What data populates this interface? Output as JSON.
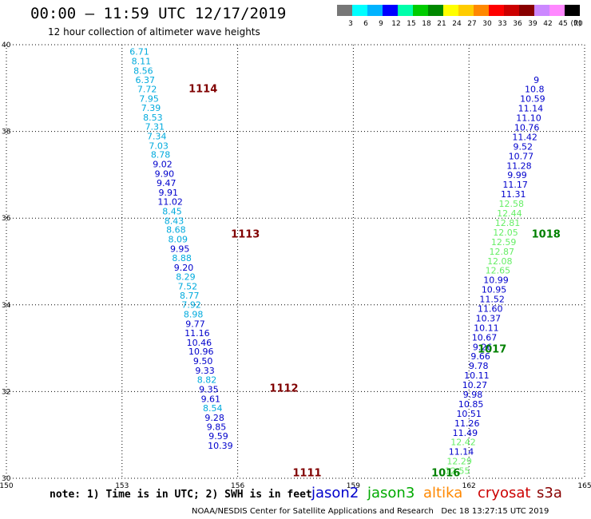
{
  "header": {
    "title": "00:00 – 11:59 UTC 12/17/2019",
    "subtitle": "12 hour collection of altimeter wave heights"
  },
  "colorbar": {
    "colors": [
      "#777777",
      "#00ffff",
      "#00b3ff",
      "#0000ff",
      "#00ffaa",
      "#00cc00",
      "#008800",
      "#ffff00",
      "#ffcc00",
      "#ff8800",
      "#ff0000",
      "#cc0000",
      "#880000",
      "#cc88ff",
      "#ff88ff",
      "#000000"
    ],
    "labels": [
      "3",
      "6",
      "9",
      "12",
      "15",
      "18",
      "21",
      "24",
      "27",
      "30",
      "33",
      "36",
      "39",
      "42",
      "45",
      "70"
    ],
    "unit": "(ft)"
  },
  "chart_data": {
    "type": "scatter",
    "title": "00:00 – 11:59 UTC 12/17/2019",
    "subtitle": "12 hour collection of altimeter wave heights",
    "xlim": [
      150,
      165
    ],
    "ylim": [
      30,
      40
    ],
    "x_ticks": [
      "150",
      "153",
      "156",
      "159",
      "162",
      "165"
    ],
    "y_ticks": [
      "30",
      "32",
      "34",
      "36",
      "38",
      "40"
    ],
    "grid": true,
    "series": [
      {
        "name": "jason2",
        "color_scale": "swh",
        "points": [
          {
            "lon": 153.45,
            "lat": 39.77,
            "swh": "6.71"
          },
          {
            "lon": 153.5,
            "lat": 39.55,
            "swh": "8.11"
          },
          {
            "lon": 153.55,
            "lat": 39.33,
            "swh": "8.56"
          },
          {
            "lon": 153.6,
            "lat": 39.12,
            "swh": "6.37"
          },
          {
            "lon": 153.65,
            "lat": 38.9,
            "swh": "7.72"
          },
          {
            "lon": 153.7,
            "lat": 38.68,
            "swh": "7.95"
          },
          {
            "lon": 153.75,
            "lat": 38.47,
            "swh": "7.39"
          },
          {
            "lon": 153.8,
            "lat": 38.25,
            "swh": "8.53"
          },
          {
            "lon": 153.85,
            "lat": 38.04,
            "swh": "7.31"
          },
          {
            "lon": 153.9,
            "lat": 37.82,
            "swh": "7.34"
          },
          {
            "lon": 153.95,
            "lat": 37.6,
            "swh": "7.03"
          },
          {
            "lon": 154.0,
            "lat": 37.39,
            "swh": "8.78"
          },
          {
            "lon": 154.05,
            "lat": 37.17,
            "swh": "9.02"
          },
          {
            "lon": 154.1,
            "lat": 36.95,
            "swh": "9.90"
          },
          {
            "lon": 154.15,
            "lat": 36.74,
            "swh": "9.47"
          },
          {
            "lon": 154.2,
            "lat": 36.52,
            "swh": "9.91"
          },
          {
            "lon": 154.25,
            "lat": 36.31,
            "swh": "11.02"
          },
          {
            "lon": 154.3,
            "lat": 36.09,
            "swh": "8.45"
          },
          {
            "lon": 154.35,
            "lat": 35.87,
            "swh": "8.43"
          },
          {
            "lon": 154.4,
            "lat": 35.66,
            "swh": "8.68"
          },
          {
            "lon": 154.45,
            "lat": 35.44,
            "swh": "8.09"
          },
          {
            "lon": 154.5,
            "lat": 35.22,
            "swh": "9.95"
          },
          {
            "lon": 154.55,
            "lat": 35.01,
            "swh": "8.88"
          },
          {
            "lon": 154.6,
            "lat": 34.79,
            "swh": "9.20"
          },
          {
            "lon": 154.65,
            "lat": 34.58,
            "swh": "8.29"
          },
          {
            "lon": 154.7,
            "lat": 34.36,
            "swh": "7.52"
          },
          {
            "lon": 154.75,
            "lat": 34.14,
            "swh": "8.77"
          },
          {
            "lon": 154.8,
            "lat": 33.93,
            "swh": "7.92"
          },
          {
            "lon": 154.85,
            "lat": 33.71,
            "swh": "8.98"
          },
          {
            "lon": 154.9,
            "lat": 33.49,
            "swh": "9.77"
          },
          {
            "lon": 154.95,
            "lat": 33.28,
            "swh": "11.16"
          },
          {
            "lon": 155.0,
            "lat": 33.06,
            "swh": "10.46"
          },
          {
            "lon": 155.05,
            "lat": 32.85,
            "swh": "10.96"
          },
          {
            "lon": 155.1,
            "lat": 32.63,
            "swh": "9.50"
          },
          {
            "lon": 155.15,
            "lat": 32.41,
            "swh": "9.33"
          },
          {
            "lon": 155.2,
            "lat": 32.2,
            "swh": "8.82"
          },
          {
            "lon": 155.25,
            "lat": 31.98,
            "swh": "9.35"
          },
          {
            "lon": 155.3,
            "lat": 31.76,
            "swh": "9.61"
          },
          {
            "lon": 155.35,
            "lat": 31.55,
            "swh": "8.54"
          },
          {
            "lon": 155.4,
            "lat": 31.33,
            "swh": "9.28"
          },
          {
            "lon": 155.45,
            "lat": 31.11,
            "swh": "9.85"
          },
          {
            "lon": 155.5,
            "lat": 30.9,
            "swh": "9.59"
          },
          {
            "lon": 155.55,
            "lat": 30.68,
            "swh": "10.39"
          }
        ]
      },
      {
        "name": "jason3",
        "color_scale": "swh",
        "points": [
          {
            "lon": 161.7,
            "lat": 30.1,
            "swh": "12.55"
          },
          {
            "lon": 161.75,
            "lat": 30.32,
            "swh": "12.29"
          },
          {
            "lon": 161.8,
            "lat": 30.54,
            "swh": "11.14"
          },
          {
            "lon": 161.85,
            "lat": 30.76,
            "swh": "12.42"
          },
          {
            "lon": 161.9,
            "lat": 30.98,
            "swh": "11.49"
          },
          {
            "lon": 161.95,
            "lat": 31.2,
            "swh": "11.26"
          },
          {
            "lon": 162.0,
            "lat": 31.42,
            "swh": "10.51"
          },
          {
            "lon": 162.05,
            "lat": 31.64,
            "swh": "10.85"
          },
          {
            "lon": 162.1,
            "lat": 31.86,
            "swh": "9.98"
          },
          {
            "lon": 162.15,
            "lat": 32.08,
            "swh": "10.27"
          },
          {
            "lon": 162.2,
            "lat": 32.3,
            "swh": "10.11"
          },
          {
            "lon": 162.25,
            "lat": 32.52,
            "swh": "9.78"
          },
          {
            "lon": 162.3,
            "lat": 32.74,
            "swh": "9.66"
          },
          {
            "lon": 162.35,
            "lat": 32.96,
            "swh": "9.26"
          },
          {
            "lon": 162.4,
            "lat": 33.18,
            "swh": "10.67"
          },
          {
            "lon": 162.45,
            "lat": 33.4,
            "swh": "10.11"
          },
          {
            "lon": 162.5,
            "lat": 33.62,
            "swh": "10.37"
          },
          {
            "lon": 162.55,
            "lat": 33.84,
            "swh": "11.60"
          },
          {
            "lon": 162.6,
            "lat": 34.06,
            "swh": "11.52"
          },
          {
            "lon": 162.65,
            "lat": 34.28,
            "swh": "10.95"
          },
          {
            "lon": 162.7,
            "lat": 34.5,
            "swh": "10.99"
          },
          {
            "lon": 162.75,
            "lat": 34.72,
            "swh": "12.65"
          },
          {
            "lon": 162.8,
            "lat": 34.94,
            "swh": "12.08"
          },
          {
            "lon": 162.85,
            "lat": 35.16,
            "swh": "12.87"
          },
          {
            "lon": 162.9,
            "lat": 35.38,
            "swh": "12.59"
          },
          {
            "lon": 162.95,
            "lat": 35.6,
            "swh": "12.05"
          },
          {
            "lon": 163.0,
            "lat": 35.82,
            "swh": "12.81"
          },
          {
            "lon": 163.05,
            "lat": 36.04,
            "swh": "12.44"
          },
          {
            "lon": 163.1,
            "lat": 36.26,
            "swh": "12.58"
          },
          {
            "lon": 163.15,
            "lat": 36.48,
            "swh": "11.31"
          },
          {
            "lon": 163.2,
            "lat": 36.7,
            "swh": "11.17"
          },
          {
            "lon": 163.25,
            "lat": 36.92,
            "swh": "9.99"
          },
          {
            "lon": 163.3,
            "lat": 37.14,
            "swh": "11.28"
          },
          {
            "lon": 163.35,
            "lat": 37.36,
            "swh": "10.77"
          },
          {
            "lon": 163.4,
            "lat": 37.58,
            "swh": "9.52"
          },
          {
            "lon": 163.45,
            "lat": 37.8,
            "swh": "11.42"
          },
          {
            "lon": 163.5,
            "lat": 38.02,
            "swh": "10.76"
          },
          {
            "lon": 163.55,
            "lat": 38.24,
            "swh": "11.10"
          },
          {
            "lon": 163.6,
            "lat": 38.46,
            "swh": "11.14"
          },
          {
            "lon": 163.65,
            "lat": 38.68,
            "swh": "10.59"
          },
          {
            "lon": 163.7,
            "lat": 38.9,
            "swh": "10.8"
          },
          {
            "lon": 163.75,
            "lat": 39.12,
            "swh": "9"
          }
        ]
      }
    ],
    "time_labels": [
      {
        "lon": 155.1,
        "lat": 38.9,
        "text": "1114",
        "color": "#800000"
      },
      {
        "lon": 156.2,
        "lat": 35.55,
        "text": "1113",
        "color": "#800000"
      },
      {
        "lon": 157.2,
        "lat": 32.0,
        "text": "1112",
        "color": "#800000"
      },
      {
        "lon": 157.8,
        "lat": 30.05,
        "text": "1111",
        "color": "#800000"
      },
      {
        "lon": 164.0,
        "lat": 35.55,
        "text": "1018",
        "color": "#008000"
      },
      {
        "lon": 162.6,
        "lat": 32.9,
        "text": "1017",
        "color": "#008000"
      },
      {
        "lon": 161.4,
        "lat": 30.05,
        "text": "1016",
        "color": "#008000"
      }
    ]
  },
  "legend": {
    "note": "note: 1) Time is in UTC; 2) SWH is in feet",
    "satellites": [
      {
        "name": "jason2",
        "color": "#0000cc"
      },
      {
        "name": "jason3",
        "color": "#00aa00"
      },
      {
        "name": "altika",
        "color": "#ff8800"
      },
      {
        "name": "cryosat",
        "color": "#cc0000"
      },
      {
        "name": "s3a",
        "color": "#880000"
      }
    ]
  },
  "footer": {
    "credit": "NOAA/NESDIS Center for Satellite Applications and Research",
    "timestamp": "Dec 18 13:27:15 UTC 2019"
  }
}
